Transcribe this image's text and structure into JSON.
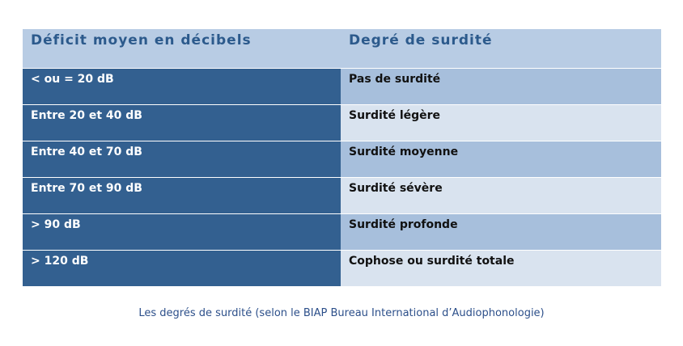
{
  "table": {
    "headers": [
      "Déficit moyen en décibels",
      "Degré de surdité"
    ],
    "rows": [
      [
        "< ou = 20 dB",
        "Pas de surdité"
      ],
      [
        "Entre 20 et 40 dB",
        "Surdité légère"
      ],
      [
        "Entre 40 et 70 dB",
        "Surdité moyenne"
      ],
      [
        "Entre 70 et 90 dB",
        "Surdité sévère"
      ],
      [
        "> 90 dB",
        "Surdité profonde"
      ],
      [
        "> 120 dB",
        "Cophose ou surdité totale"
      ]
    ]
  },
  "caption": "Les degrés de surdité (selon le BIAP Bureau International d’Audiophonologie)",
  "colors": {
    "header_bg": "#b8cce4",
    "header_text": "#2c5a8c",
    "left_col_bg": "#336090",
    "right_odd_bg": "#a7bfdc",
    "right_even_bg": "#d9e3ef",
    "caption_text": "#2c4f8a"
  }
}
